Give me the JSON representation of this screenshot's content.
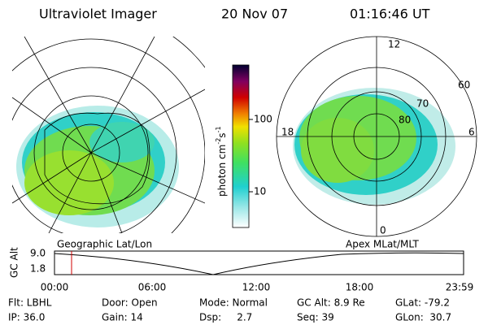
{
  "header": {
    "instrument": "Ultraviolet Imager",
    "date": "20 Nov 07",
    "time": "01:16:46 UT"
  },
  "colorbar": {
    "unit": "photon cm",
    "exp1": "-2",
    "unit2": "s",
    "exp2": "-1",
    "ticks": [
      "100",
      "10"
    ]
  },
  "polar": {
    "mlt": [
      "12",
      "18",
      "6",
      "0"
    ],
    "mlat": [
      "60",
      "70",
      "80"
    ]
  },
  "altitude_plot": {
    "left_title": "Geographic Lat/Lon",
    "right_title": "Apex MLat/MLT",
    "ylabel": "GC Alt",
    "yticks": [
      "9.0",
      "1.8"
    ],
    "xticks": [
      "00:00",
      "06:00",
      "12:00",
      "18:00",
      "23:59"
    ]
  },
  "footer": [
    [
      "Flt: LBHL",
      "Door: Open",
      "Mode: Normal",
      "GC Alt: 8.9 Re",
      "GLat: -79.2"
    ],
    [
      "IP: 36.0",
      "Gain: 14",
      "Dsp:     2.7",
      "Seq: 39",
      "GLon:  30.7"
    ]
  ]
}
